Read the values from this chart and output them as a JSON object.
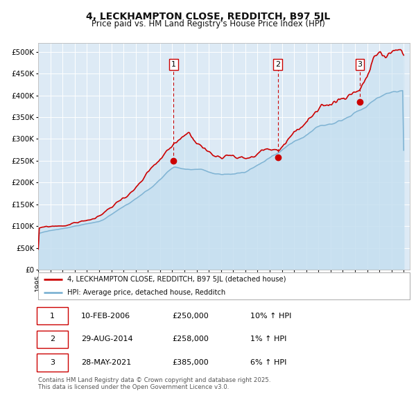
{
  "title": "4, LECKHAMPTON CLOSE, REDDITCH, B97 5JL",
  "subtitle": "Price paid vs. HM Land Registry's House Price Index (HPI)",
  "title_fontsize": 10,
  "subtitle_fontsize": 8.5,
  "background_color": "#ffffff",
  "plot_bg_color": "#ddeaf5",
  "grid_color": "#ffffff",
  "red_line_color": "#cc0000",
  "blue_line_color": "#7fb3d3",
  "fill_color": "#c5dff0",
  "dashed_line_color": "#cc0000",
  "xlim_start": 1995.0,
  "xlim_end": 2025.5,
  "ylim_min": 0,
  "ylim_max": 520000,
  "yticks": [
    0,
    50000,
    100000,
    150000,
    200000,
    250000,
    300000,
    350000,
    400000,
    450000,
    500000
  ],
  "ytick_labels": [
    "£0",
    "£50K",
    "£100K",
    "£150K",
    "£200K",
    "£250K",
    "£300K",
    "£350K",
    "£400K",
    "£450K",
    "£500K"
  ],
  "xticks": [
    1995,
    1996,
    1997,
    1998,
    1999,
    2000,
    2001,
    2002,
    2003,
    2004,
    2005,
    2006,
    2007,
    2008,
    2009,
    2010,
    2011,
    2012,
    2013,
    2014,
    2015,
    2016,
    2017,
    2018,
    2019,
    2020,
    2021,
    2022,
    2023,
    2024,
    2025
  ],
  "sale_events": [
    {
      "num": 1,
      "date": "10-FEB-2006",
      "x": 2006.11,
      "price": 250000,
      "hpi_pct": "10%",
      "direction": "↑"
    },
    {
      "num": 2,
      "date": "29-AUG-2014",
      "x": 2014.66,
      "price": 258000,
      "hpi_pct": "1%",
      "direction": "↑"
    },
    {
      "num": 3,
      "date": "28-MAY-2021",
      "x": 2021.41,
      "price": 385000,
      "hpi_pct": "6%",
      "direction": "↑"
    }
  ],
  "legend_red_label": "4, LECKHAMPTON CLOSE, REDDITCH, B97 5JL (detached house)",
  "legend_blue_label": "HPI: Average price, detached house, Redditch",
  "footer": "Contains HM Land Registry data © Crown copyright and database right 2025.\nThis data is licensed under the Open Government Licence v3.0.",
  "table_rows": [
    [
      "1",
      "10-FEB-2006",
      "£250,000",
      "10% ↑ HPI"
    ],
    [
      "2",
      "29-AUG-2014",
      "£258,000",
      "1% ↑ HPI"
    ],
    [
      "3",
      "28-MAY-2021",
      "£385,000",
      "6% ↑ HPI"
    ]
  ]
}
